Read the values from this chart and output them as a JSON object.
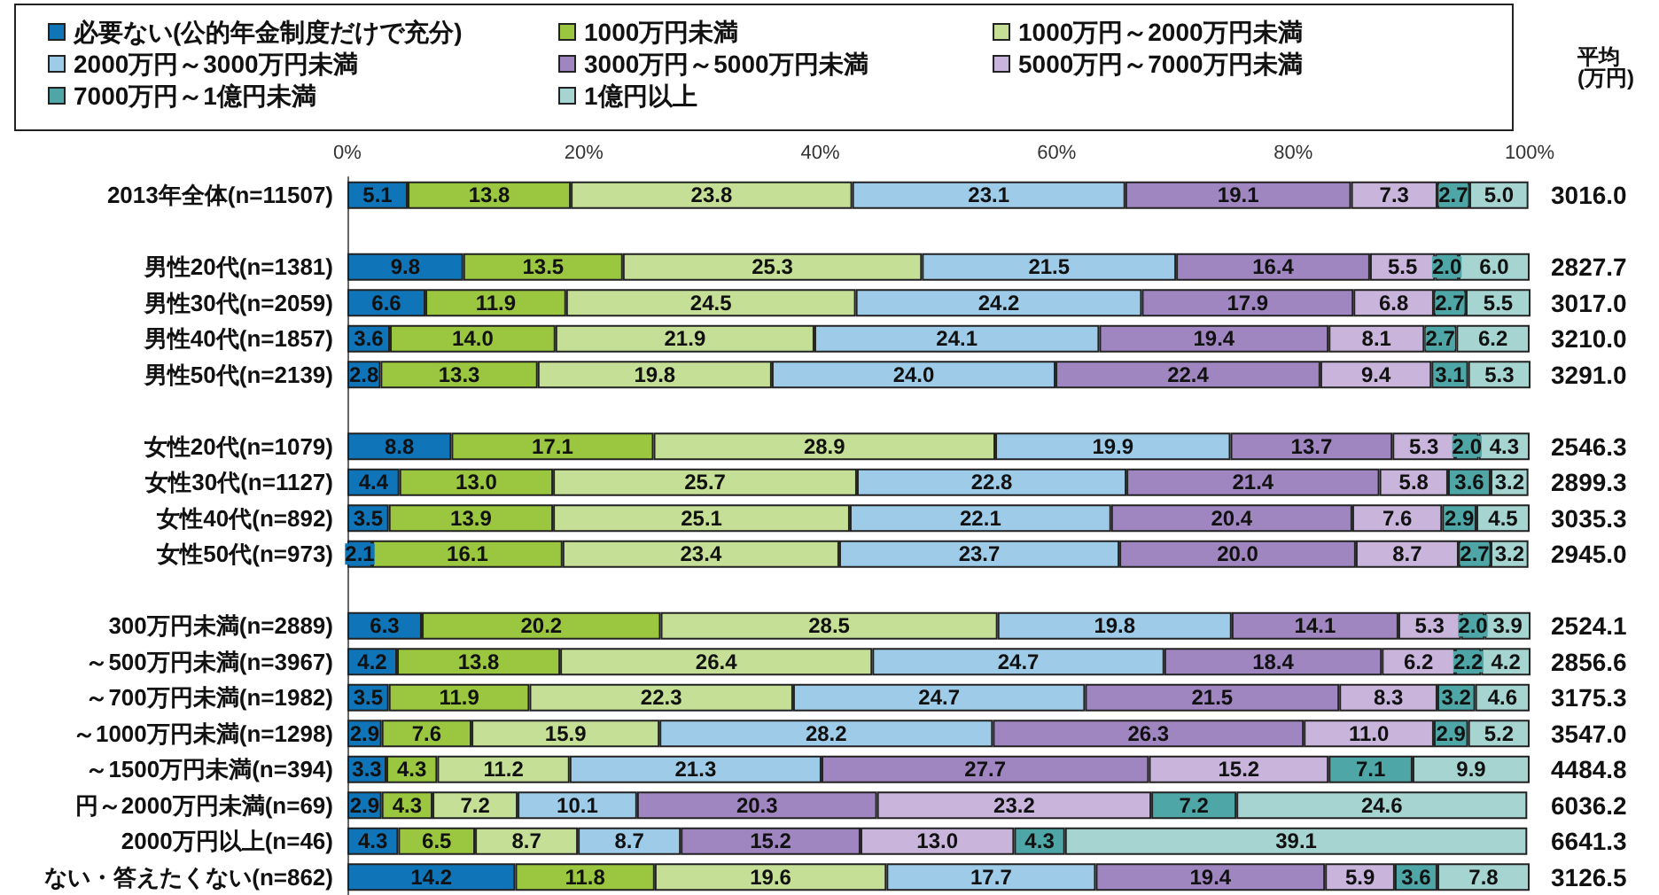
{
  "chart_data": {
    "type": "bar",
    "orientation": "horizontal",
    "stacked": true,
    "grid": false,
    "legend": "top",
    "categories": [
      "2013年全体(n=11507)",
      null,
      "男性20代(n=1381)",
      "男性30代(n=2059)",
      "男性40代(n=1857)",
      "男性50代(n=2139)",
      null,
      "女性20代(n=1079)",
      "女性30代(n=1127)",
      "女性40代(n=892)",
      "女性50代(n=973)",
      null,
      "300万円未満(n=2889)",
      "～500万円未満(n=3967)",
      "～700万円未満(n=1982)",
      "～1000万円未満(n=1298)",
      "～1500万円未満(n=394)",
      "円～2000万円未満(n=69)",
      "2000万円以上(n=46)",
      "ない・答えたくない(n=862)"
    ],
    "xlim": [
      0,
      100
    ],
    "xticks": [
      {
        "value": 0,
        "label": "0%"
      },
      {
        "value": 20,
        "label": "20%"
      },
      {
        "value": 40,
        "label": "40%"
      },
      {
        "value": 60,
        "label": "60%"
      },
      {
        "value": 80,
        "label": "80%"
      },
      {
        "value": 100,
        "label": "100%"
      }
    ],
    "series": [
      {
        "name": "必要ない(公的年金制度だけで充分)",
        "color": "#0f74b8",
        "values": [
          5.1,
          null,
          9.8,
          6.6,
          3.6,
          2.8,
          null,
          8.8,
          4.4,
          3.5,
          2.1,
          null,
          6.3,
          4.2,
          3.5,
          2.9,
          3.3,
          2.9,
          4.3,
          14.2
        ],
        "value_labels": [
          "5.1",
          null,
          "9.8",
          "6.6",
          "3.6",
          "2.8",
          null,
          "8.8",
          "4.4",
          "3.5",
          "2.1",
          null,
          "6.3",
          "4.2",
          "3.5",
          "2.9",
          "3.3",
          "2.9",
          "4.3",
          "14.2"
        ]
      },
      {
        "name": "1000万円未満",
        "color": "#9bc640",
        "values": [
          13.8,
          null,
          13.5,
          11.9,
          14.0,
          13.3,
          null,
          17.1,
          13.0,
          13.9,
          16.1,
          null,
          20.2,
          13.8,
          11.9,
          7.6,
          4.3,
          4.3,
          6.5,
          11.8
        ],
        "value_labels": [
          "13.8",
          null,
          "13.5",
          "11.9",
          "14.0",
          "13.3",
          null,
          "17.1",
          "13.0",
          "13.9",
          "16.1",
          null,
          "20.2",
          "13.8",
          "11.9",
          "7.6",
          "4.3",
          "4.3",
          "6.5",
          "11.8"
        ]
      },
      {
        "name": "1000万円～2000万円未満",
        "color": "#c5df96",
        "values": [
          23.8,
          null,
          25.3,
          24.5,
          21.9,
          19.8,
          null,
          28.9,
          25.7,
          25.1,
          23.4,
          null,
          28.5,
          26.4,
          22.3,
          15.9,
          11.2,
          7.2,
          8.7,
          19.6
        ],
        "value_labels": [
          "23.8",
          null,
          "25.3",
          "24.5",
          "21.9",
          "19.8",
          null,
          "28.9",
          "25.7",
          "25.1",
          "23.4",
          null,
          "28.5",
          "26.4",
          "22.3",
          "15.9",
          "11.2",
          "7.2",
          "8.7",
          "19.6"
        ]
      },
      {
        "name": "2000万円～3000万円未満",
        "color": "#9dcbe8",
        "values": [
          23.1,
          null,
          21.5,
          24.2,
          24.1,
          24.0,
          null,
          19.9,
          22.8,
          22.1,
          23.7,
          null,
          19.8,
          24.7,
          24.7,
          28.2,
          21.3,
          10.1,
          8.7,
          17.7
        ],
        "value_labels": [
          "23.1",
          null,
          "21.5",
          "24.2",
          "24.1",
          "24.0",
          null,
          "19.9",
          "22.8",
          "22.1",
          "23.7",
          null,
          "19.8",
          "24.7",
          "24.7",
          "28.2",
          "21.3",
          "10.1",
          "8.7",
          "17.7"
        ]
      },
      {
        "name": "3000万円～5000万円未満",
        "color": "#a086c0",
        "values": [
          19.1,
          null,
          16.4,
          17.9,
          19.4,
          22.4,
          null,
          13.7,
          21.4,
          20.4,
          20.0,
          null,
          14.1,
          18.4,
          21.5,
          26.3,
          27.7,
          20.3,
          15.2,
          19.4
        ],
        "value_labels": [
          "19.1",
          null,
          "16.4",
          "17.9",
          "19.4",
          "22.4",
          null,
          "13.7",
          "21.4",
          "20.4",
          "20.0",
          null,
          "14.1",
          "18.4",
          "21.5",
          "26.3",
          "27.7",
          "20.3",
          "15.2",
          "19.4"
        ]
      },
      {
        "name": "5000万円～7000万円未満",
        "color": "#c9b5dc",
        "values": [
          7.3,
          null,
          5.5,
          6.8,
          8.1,
          9.4,
          null,
          5.3,
          5.8,
          7.6,
          8.7,
          null,
          5.3,
          6.2,
          8.3,
          11.0,
          15.2,
          23.2,
          13.0,
          5.9
        ],
        "value_labels": [
          "7.3",
          null,
          "5.5",
          "6.8",
          "8.1",
          "9.4",
          null,
          "5.3",
          "5.8",
          "7.6",
          "8.7",
          null,
          "5.3",
          "6.2",
          "8.3",
          "11.0",
          "15.2",
          "23.2",
          "13.0",
          "5.9"
        ]
      },
      {
        "name": "7000万円～1億円未満",
        "color": "#4ea6a6",
        "values": [
          2.7,
          null,
          2.0,
          2.7,
          2.7,
          3.1,
          null,
          2.0,
          3.6,
          2.9,
          2.7,
          null,
          2.0,
          2.2,
          3.2,
          2.9,
          7.1,
          7.2,
          4.3,
          3.6
        ],
        "value_labels": [
          "2.7",
          null,
          "2.0",
          "2.7",
          "2.7",
          "3.1",
          null,
          "2.0",
          "3.6",
          "2.9",
          "2.7",
          null,
          "2.0",
          "2.2",
          "3.2",
          "2.9",
          "7.1",
          "7.2",
          "4.3",
          "3.6"
        ]
      },
      {
        "name": "1億円以上",
        "color": "#a6d4d1",
        "values": [
          5.0,
          null,
          6.0,
          5.5,
          6.2,
          5.3,
          null,
          4.3,
          3.2,
          4.5,
          3.2,
          null,
          3.9,
          4.2,
          4.6,
          5.2,
          9.9,
          24.6,
          39.1,
          7.8
        ],
        "value_labels": [
          "5.0",
          null,
          "6.0",
          "5.5",
          "6.2",
          "5.3",
          null,
          "4.3",
          "3.2",
          "4.5",
          "3.2",
          null,
          "3.9",
          "4.2",
          "4.6",
          "5.2",
          "9.9",
          "24.6",
          "39.1",
          "7.8"
        ]
      }
    ],
    "annotations": [
      "平均\n(万円)",
      "3016.0",
      "2827.7",
      "3017.0",
      "3210.0",
      "3291.0",
      "2546.3",
      "2899.3",
      "3035.3",
      "2945.0",
      "2524.1",
      "2856.6",
      "3175.3",
      "3547.0",
      "4484.8",
      "6036.2",
      "6641.3",
      "3126.5"
    ]
  }
}
